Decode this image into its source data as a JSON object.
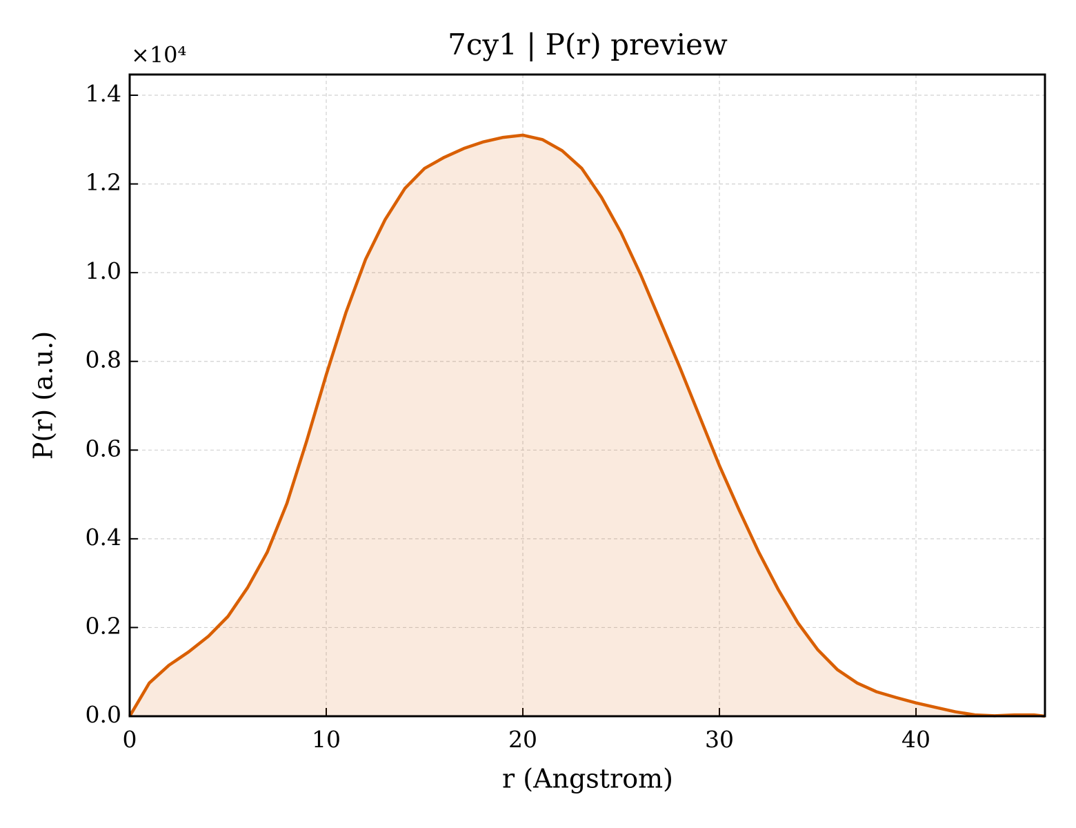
{
  "chart_data": {
    "type": "line",
    "title": "7cy1 | P(r) preview",
    "x_label": "r (Angstrom)",
    "y_label": "P(r) (a.u.)",
    "y_offset_label": "×10⁴",
    "x": [
      0,
      1,
      2,
      3,
      4,
      5,
      6,
      7,
      8,
      9,
      10,
      11,
      12,
      13,
      14,
      15,
      16,
      17,
      18,
      19,
      20,
      21,
      22,
      23,
      24,
      25,
      26,
      27,
      28,
      29,
      30,
      31,
      32,
      33,
      34,
      35,
      36,
      37,
      38,
      39,
      40,
      41,
      42,
      43,
      44,
      45,
      46,
      46.56
    ],
    "series": [
      {
        "name": "P(r)",
        "color": "#d95f02",
        "fill_opacity": 0.13,
        "values": [
          0,
          0.075,
          0.115,
          0.145,
          0.18,
          0.225,
          0.29,
          0.37,
          0.48,
          0.62,
          0.77,
          0.91,
          1.03,
          1.12,
          1.19,
          1.235,
          1.26,
          1.28,
          1.295,
          1.305,
          1.31,
          1.3,
          1.275,
          1.235,
          1.17,
          1.09,
          0.995,
          0.89,
          0.785,
          0.675,
          0.565,
          0.465,
          0.37,
          0.285,
          0.21,
          0.15,
          0.105,
          0.075,
          0.055,
          0.042,
          0.03,
          0.02,
          0.01,
          0.003,
          0.001,
          0.003,
          0.003,
          0
        ]
      }
    ],
    "xlim": [
      0,
      46.56
    ],
    "ylim": [
      0,
      1.4467
    ],
    "xticks": [
      0,
      10,
      20,
      30,
      40
    ],
    "yticks": [
      {
        "value": 0,
        "label": "0.0"
      },
      0.2,
      0.4,
      0.6,
      0.8,
      {
        "value": 1,
        "label": "1.0"
      },
      1.2,
      1.4
    ],
    "grid": true
  }
}
